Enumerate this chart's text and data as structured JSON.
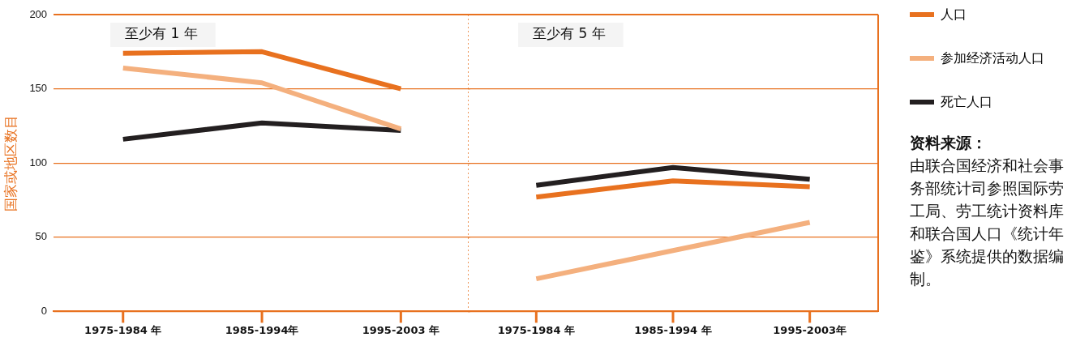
{
  "chart_data": [
    {
      "type": "line",
      "title": "至少有 1 年",
      "ylabel": "国家或地区数目",
      "categories": [
        "1975-1984 年",
        "1985-1994年",
        "1995-2003 年"
      ],
      "series": [
        {
          "name": "人口",
          "color": "#e8711f",
          "values": [
            174,
            175,
            150
          ]
        },
        {
          "name": "参加经济活动人口",
          "color": "#f4b07e",
          "values": [
            164,
            154,
            123
          ]
        },
        {
          "name": "死亡人口",
          "color": "#231f20",
          "values": [
            116,
            127,
            122
          ]
        }
      ],
      "ylim": [
        0,
        200
      ],
      "yticks": [
        0,
        50,
        100,
        150,
        200
      ],
      "grid": "y",
      "legend": "right"
    },
    {
      "type": "line",
      "title": "至少有 5 年",
      "categories": [
        "1975-1984 年",
        "1985-1994 年",
        "1995-2003年"
      ],
      "series": [
        {
          "color": "#e8711f",
          "values": [
            77,
            88,
            84
          ]
        },
        {
          "color": "#f4b07e",
          "values": [
            22,
            41,
            60
          ]
        },
        {
          "color": "#231f20",
          "values": [
            85,
            97,
            89
          ]
        }
      ],
      "ylim": [
        0,
        200
      ],
      "yticks": [
        0,
        50,
        100,
        150,
        200
      ],
      "grid": "y",
      "tick_labels": "x",
      "annotations": [
        "资料来源：",
        "由联合国经济和社会事务部统计司参照国际劳工局、劳工统计资料库和联合国人口《统计年鉴》系统提供的数据编制。"
      ]
    }
  ]
}
